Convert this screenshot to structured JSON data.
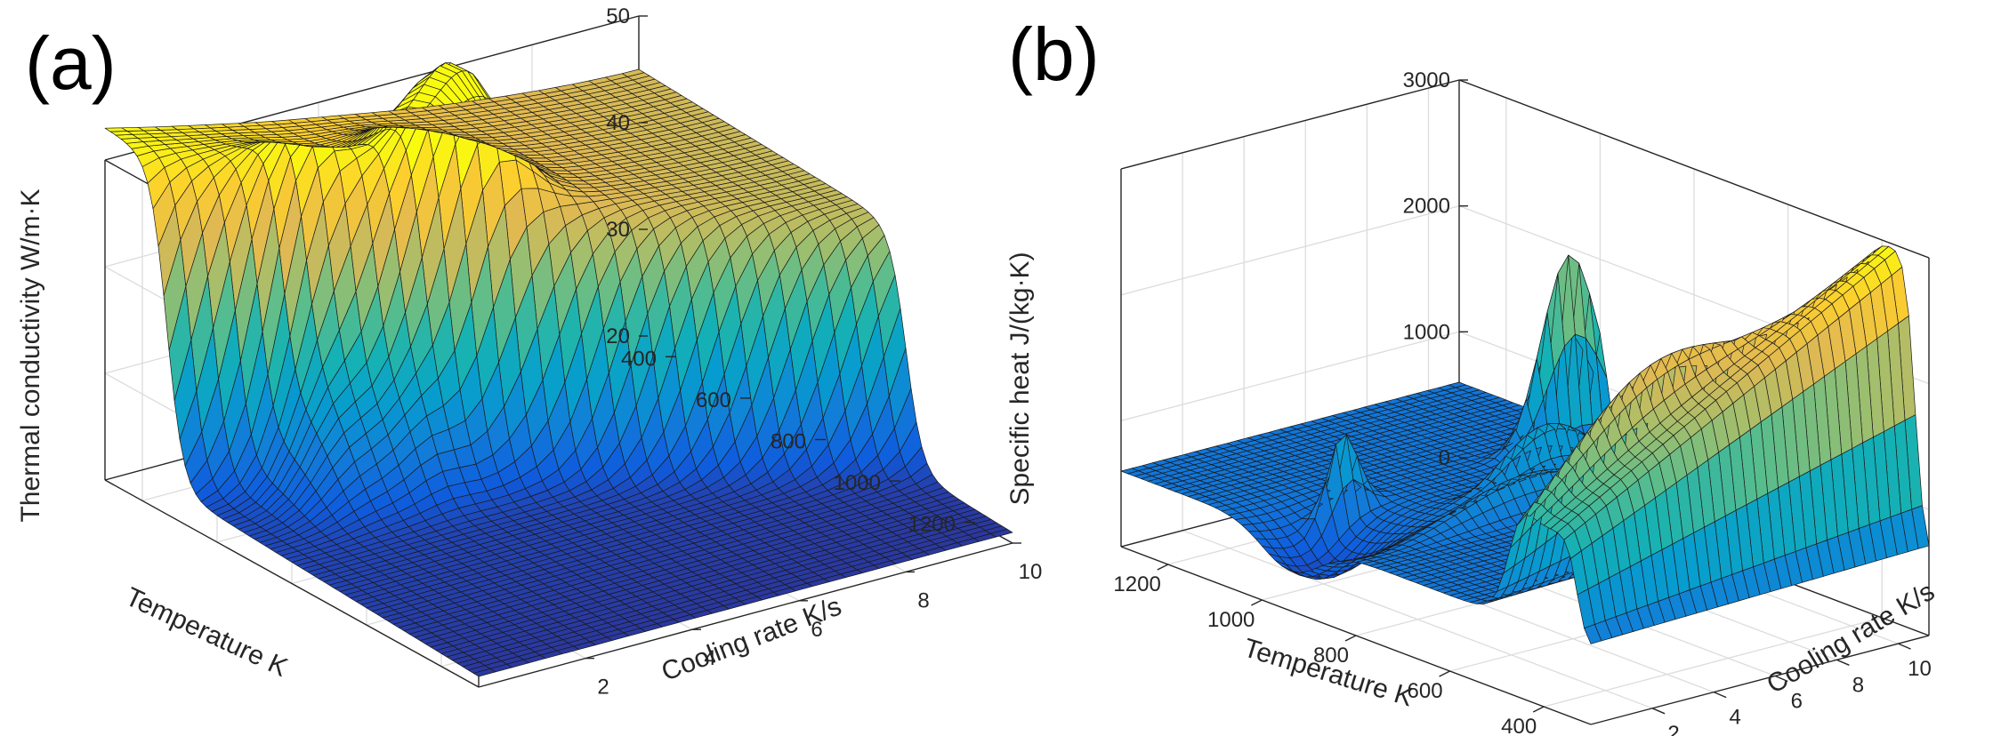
{
  "chart_data": [
    {
      "panel": "(a)",
      "type": "surface3d",
      "title": "",
      "xlabel": "Temperature K",
      "ylabel": "Cooling rate K/s",
      "zlabel": "Thermal conductivity W/m·K",
      "x_ticks": [
        "400",
        "600",
        "800",
        "1000",
        "1200"
      ],
      "y_ticks": [
        "2",
        "4",
        "6",
        "8",
        "10"
      ],
      "z_ticks": [
        "20",
        "30",
        "40",
        "50"
      ],
      "xlim": [
        300,
        1300
      ],
      "ylim": [
        0,
        10
      ],
      "zlim": [
        20,
        50
      ],
      "grid": true,
      "colormap": "parula",
      "surface_summary": {
        "max_conductivity": 52,
        "min_conductivity": 23,
        "low_temperature_plateau": 43,
        "transition_temperature_range": [
          450,
          1000
        ]
      }
    },
    {
      "panel": "(b)",
      "type": "surface3d",
      "title": "",
      "xlabel": "Temperature K",
      "ylabel": "Cooling rate K/s",
      "zlabel": "Specific heat  J/(kg·K)",
      "x_ticks": [
        "1200",
        "1000",
        "800",
        "600",
        "400"
      ],
      "y_ticks": [
        "2",
        "4",
        "6",
        "8",
        "10"
      ],
      "z_ticks": [
        "0",
        "1000",
        "2000",
        "3000"
      ],
      "xlim": [
        1300,
        300
      ],
      "ylim": [
        0,
        11
      ],
      "zlim": [
        0,
        3000
      ],
      "grid": true,
      "colormap": "parula",
      "surface_summary": {
        "baseline_specific_heat": 600,
        "peaks": [
          {
            "temperature": 1000,
            "cooling_rate": 10,
            "specific_heat": 2100
          },
          {
            "temperature": 1000,
            "cooling_rate": 3,
            "specific_heat": 1250
          },
          {
            "temperature": 350,
            "cooling_rate": 10,
            "specific_heat": 3000
          },
          {
            "temperature": 420,
            "cooling_rate": 1,
            "specific_heat": 1900
          }
        ]
      }
    }
  ]
}
